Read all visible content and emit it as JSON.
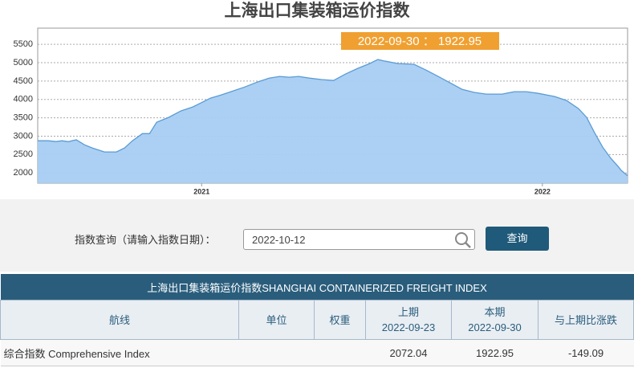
{
  "chart_data": {
    "type": "area",
    "title": "上海出口集装箱运价指数",
    "annotation": "2022-09-30 ： 1922.95",
    "color": "#a6cdf2",
    "line_color": "#5b9bd5",
    "grid": true,
    "xlim": [
      2021.019,
      2022.75
    ],
    "xticks": [
      {
        "value": 2021.5,
        "label": "2021"
      },
      {
        "value": 2022.5,
        "label": "2022"
      }
    ],
    "ylim": [
      1720,
      5940
    ],
    "yticks": [
      2000,
      2500,
      3000,
      3500,
      4000,
      4500,
      5000,
      5500
    ],
    "x": [
      2021.019,
      2021.05,
      2021.073,
      2021.09,
      2021.109,
      2021.132,
      2021.156,
      2021.179,
      2021.215,
      2021.25,
      2021.274,
      2021.297,
      2021.326,
      2021.347,
      2021.368,
      2021.403,
      2021.439,
      2021.474,
      2021.498,
      2021.526,
      2021.557,
      2021.592,
      2021.627,
      2021.663,
      2021.698,
      2021.729,
      2021.757,
      2021.785,
      2021.816,
      2021.852,
      2021.887,
      2021.922,
      2021.958,
      2021.993,
      2022.017,
      2022.04,
      2022.076,
      2022.123,
      2022.158,
      2022.194,
      2022.229,
      2022.264,
      2022.3,
      2022.335,
      2022.382,
      2022.418,
      2022.453,
      2022.488,
      2022.536,
      2022.571,
      2022.606,
      2022.63,
      2022.653,
      2022.677,
      2022.701,
      2022.724,
      2022.731,
      2022.75
    ],
    "values": [
      2875,
      2875,
      2853,
      2875,
      2850,
      2900,
      2765,
      2680,
      2570,
      2570,
      2680,
      2875,
      3070,
      3070,
      3380,
      3510,
      3685,
      3795,
      3905,
      4035,
      4120,
      4230,
      4340,
      4470,
      4580,
      4625,
      4605,
      4625,
      4580,
      4540,
      4515,
      4690,
      4845,
      4975,
      5085,
      5040,
      4975,
      4955,
      4800,
      4625,
      4450,
      4275,
      4190,
      4145,
      4145,
      4210,
      4210,
      4165,
      4080,
      3970,
      3750,
      3510,
      3095,
      2700,
      2395,
      2155,
      2072.04,
      1922.95
    ]
  },
  "search": {
    "label": "指数查询（请输入指数日期）：",
    "input": "2022-10-12",
    "button": "查询"
  },
  "table": {
    "title": "上海出口集装箱运价指数SHANGHAI CONTAINERIZED FREIGHT INDEX",
    "headers": {
      "route": "航线",
      "unit": "单位",
      "weight": "权重",
      "previous": [
        "上期",
        "2022-09-23"
      ],
      "current": [
        "本期",
        "2022-09-30"
      ],
      "change": "与上期比涨跌"
    },
    "rows": [
      {
        "route": "综合指数 Comprehensive Index",
        "previous": 2072.04,
        "current": 1922.95,
        "change": -149.09
      }
    ]
  }
}
